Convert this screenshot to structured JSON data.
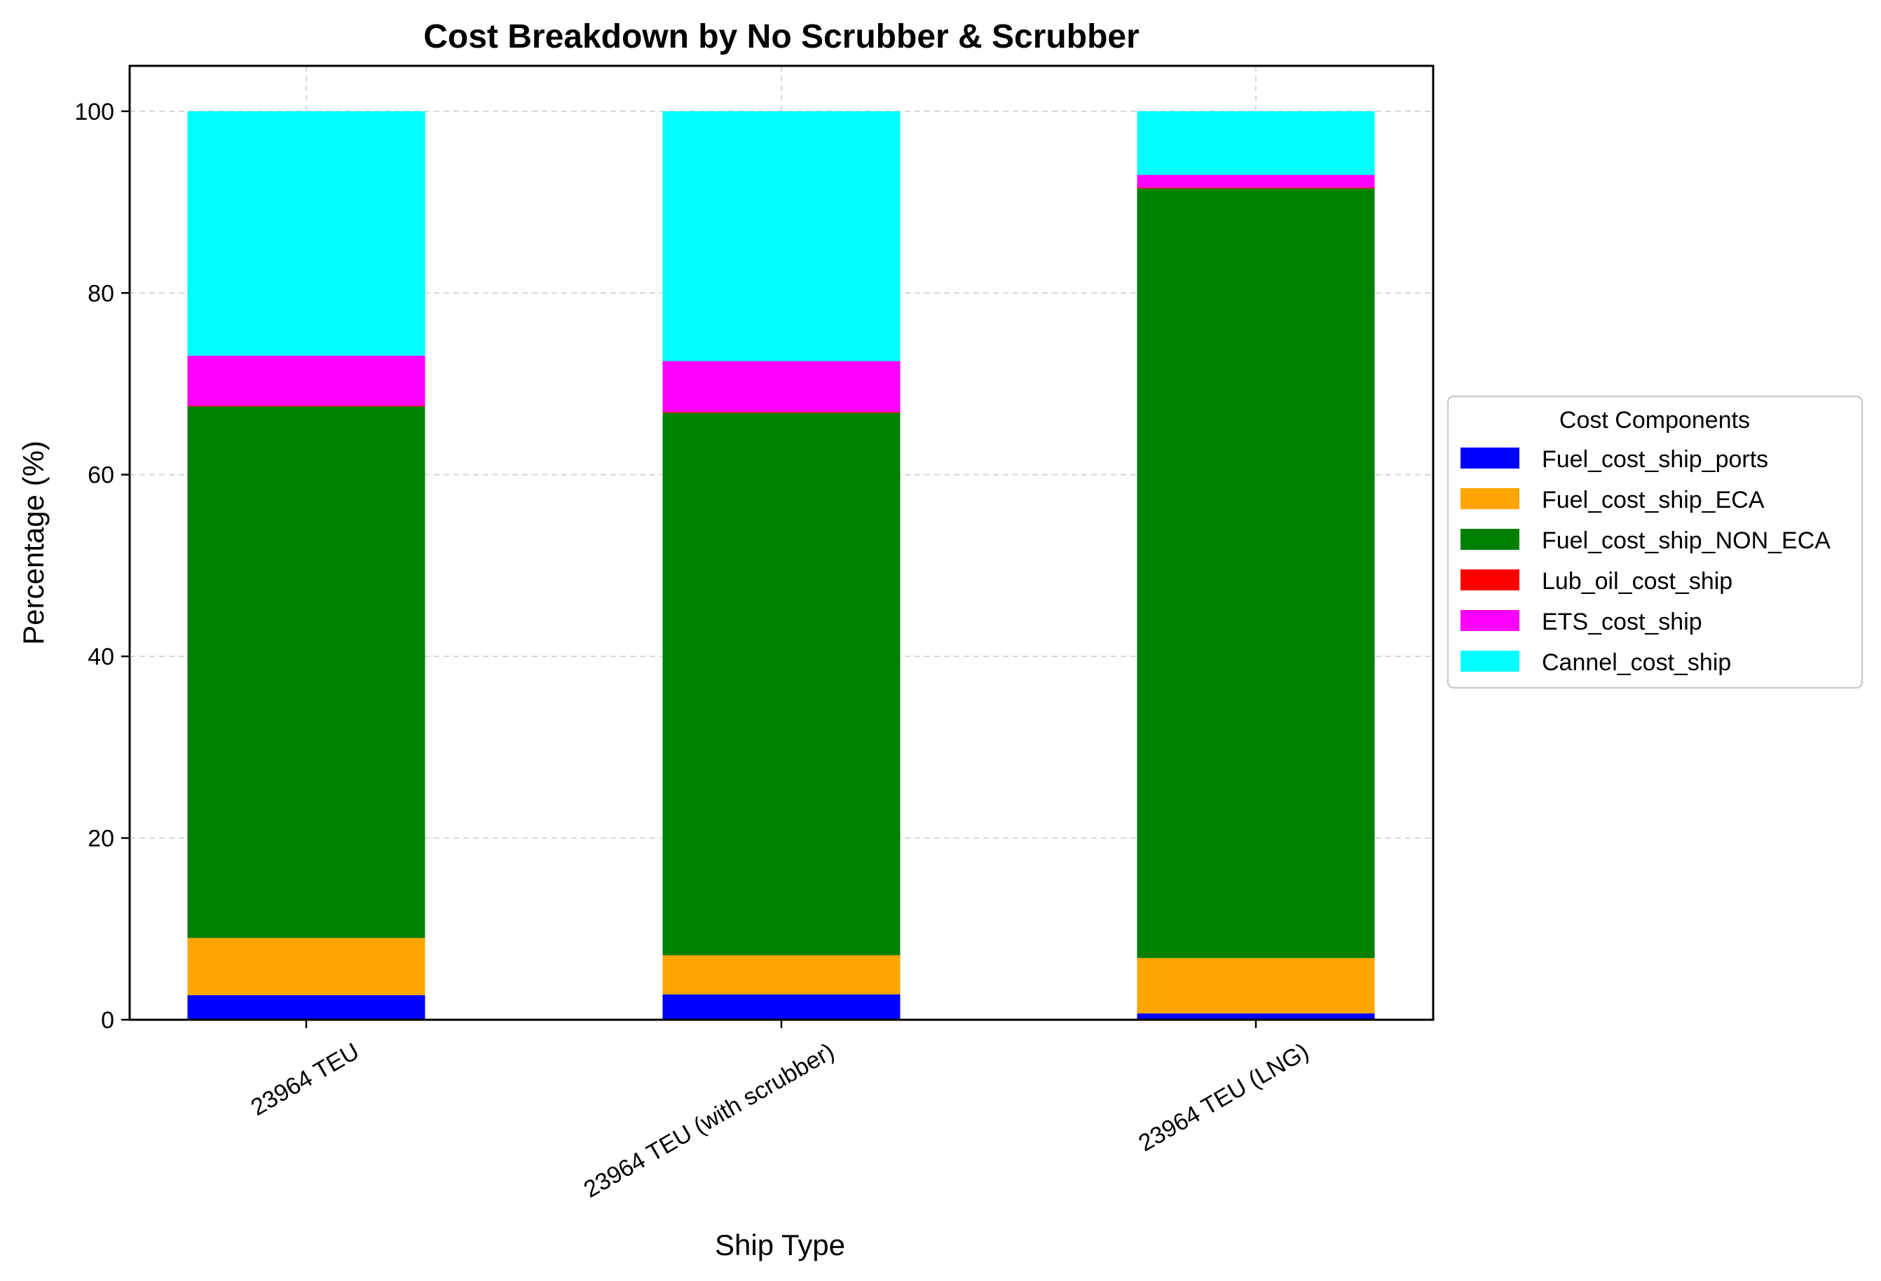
{
  "chart_data": {
    "type": "bar",
    "stacked": true,
    "title": "Cost Breakdown by No Scrubber & Scrubber",
    "xlabel": "Ship Type",
    "ylabel": "Percentage (%)",
    "ylim": [
      0,
      105
    ],
    "yticks": [
      0,
      20,
      40,
      60,
      80,
      100
    ],
    "grid": true,
    "categories": [
      "23964 TEU",
      "23964 TEU (with scrubber)",
      "23964 TEU (LNG)"
    ],
    "series": [
      {
        "name": "Fuel_cost_ship_ports",
        "color": "#0000ff",
        "values": [
          2.7,
          2.8,
          0.7
        ]
      },
      {
        "name": "Fuel_cost_ship_ECA",
        "color": "#ffa500",
        "values": [
          6.3,
          4.3,
          6.1
        ]
      },
      {
        "name": "Fuel_cost_ship_NON_ECA",
        "color": "#008000",
        "values": [
          58.5,
          59.7,
          84.7
        ]
      },
      {
        "name": "Lub_oil_cost_ship",
        "color": "#ff0000",
        "values": [
          0.1,
          0.1,
          0.1
        ]
      },
      {
        "name": "ETS_cost_ship",
        "color": "#ff00ff",
        "values": [
          5.5,
          5.6,
          1.4
        ]
      },
      {
        "name": "Cannel_cost_ship",
        "color": "#00ffff",
        "values": [
          26.9,
          27.5,
          7.0
        ]
      }
    ],
    "legend": {
      "title": "Cost Components",
      "placement": "center-right, outside plot"
    }
  }
}
